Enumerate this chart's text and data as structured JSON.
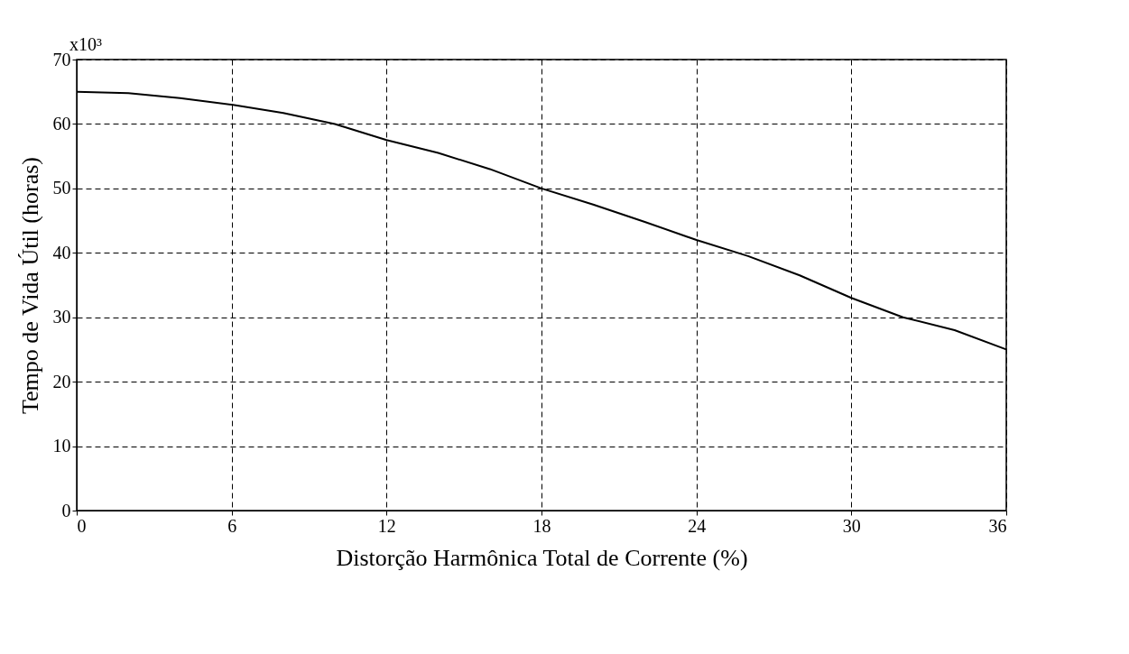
{
  "chart_data": {
    "type": "line",
    "xlabel": "Distorção Harmônica Total de Corrente (%)",
    "ylabel": "Tempo de Vida Útil (horas)",
    "annotations": [
      "x10³"
    ],
    "x": [
      0,
      2,
      4,
      6,
      8,
      10,
      12,
      14,
      16,
      18,
      20,
      22,
      24,
      26,
      28,
      30,
      32,
      34,
      36
    ],
    "series": [
      {
        "color": "#000000",
        "values": [
          65,
          64.8,
          64,
          63,
          61.7,
          60,
          57.5,
          55.5,
          53,
          50,
          47.5,
          44.8,
          42,
          39.5,
          36.5,
          33,
          30,
          28,
          25
        ]
      }
    ],
    "xlim": [
      0,
      36
    ],
    "xticks": [
      0,
      6,
      12,
      18,
      24,
      30,
      36
    ],
    "ylim": [
      0,
      70
    ],
    "yticks": [
      0,
      10,
      20,
      30,
      40,
      50,
      60,
      70
    ],
    "grid": true,
    "line_style": "solid",
    "legend": false
  }
}
